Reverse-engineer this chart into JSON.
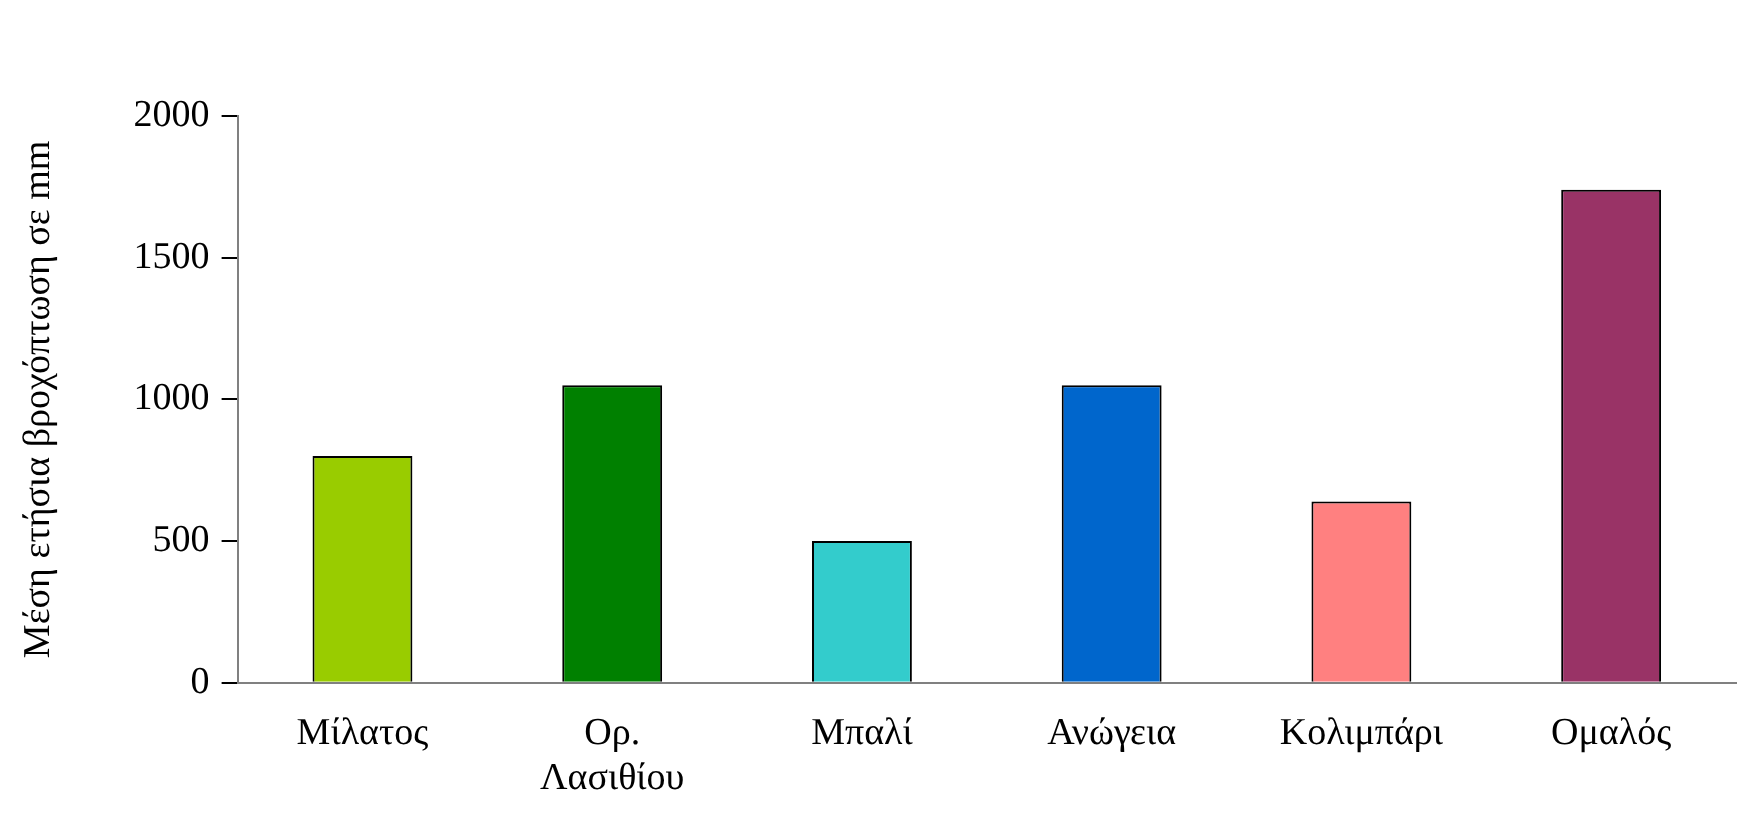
{
  "chart_data": {
    "type": "bar",
    "ylabel": "Μέση ετήσια βροχόπτωση σε mm",
    "categories": [
      "Μίλατος",
      "Ορ. Λασιθίου",
      "Μπαλί",
      "Ανώγεια",
      "Κολιμπάρι",
      "Ομαλός"
    ],
    "values": [
      800,
      1050,
      500,
      1050,
      640,
      1740
    ],
    "colors": [
      "#99cc00",
      "#008000",
      "#33cccc",
      "#0066cc",
      "#ff8080",
      "#993366"
    ],
    "ylim": [
      0,
      2000
    ],
    "yticks": [
      0,
      500,
      1000,
      1500,
      2000
    ],
    "grid": false,
    "legend": false
  }
}
